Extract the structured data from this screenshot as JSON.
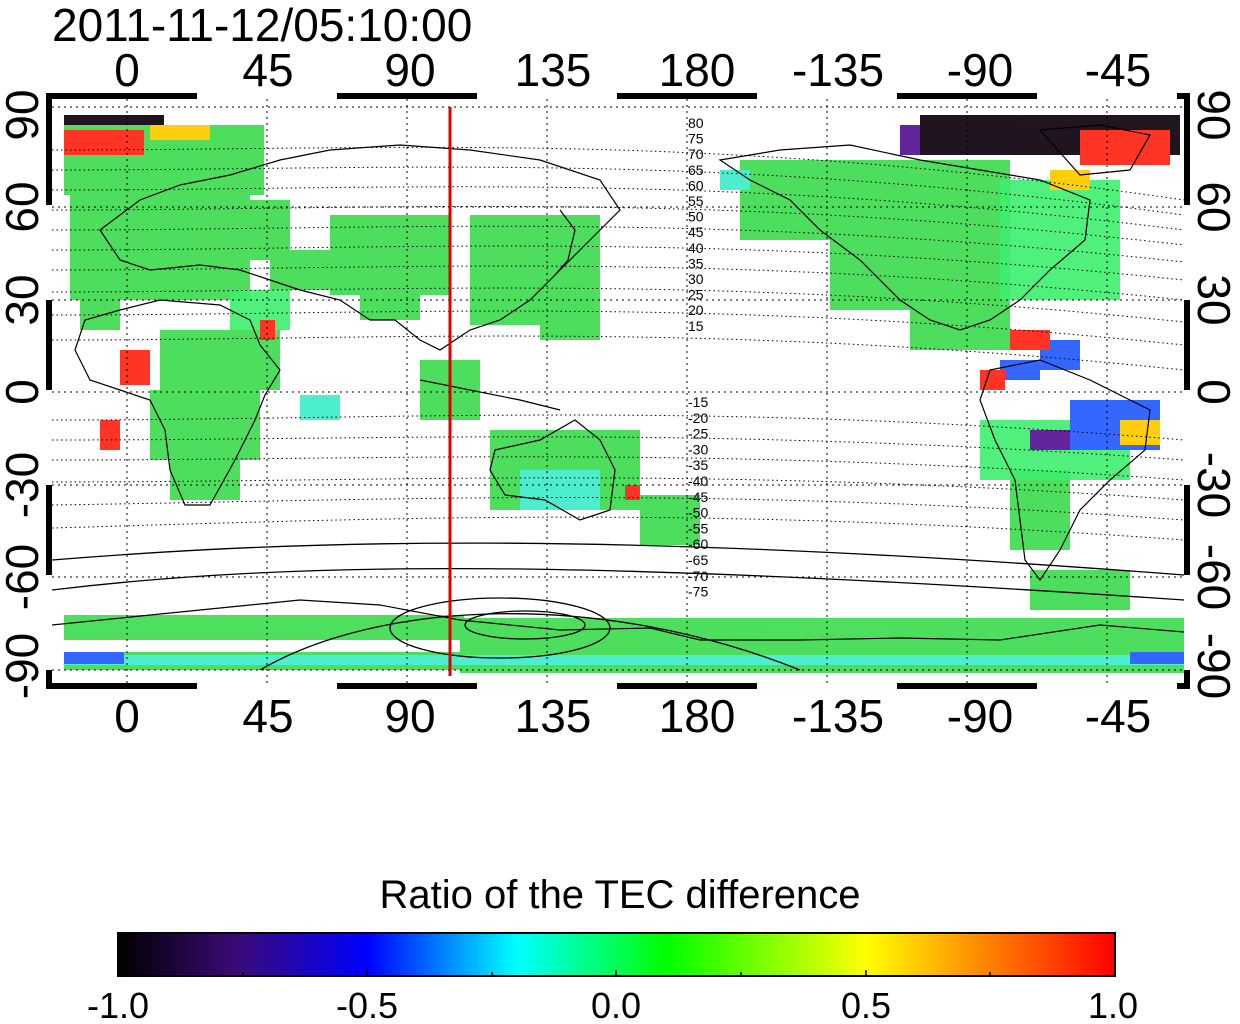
{
  "title": "2011-11-12/05:10:00",
  "map": {
    "lon_ticks": [
      "0",
      "45",
      "90",
      "135",
      "180",
      "-135",
      "-90",
      "-45"
    ],
    "lat_ticks": [
      "90",
      "60",
      "30",
      "0",
      "-30",
      "-60",
      "-90"
    ],
    "terminator_longitude": 103,
    "contour_labels_north": [
      "80",
      "75",
      "70",
      "65",
      "60",
      "55",
      "50",
      "45",
      "40",
      "35",
      "30",
      "25",
      "20",
      "15"
    ],
    "contour_labels_south": [
      "-15",
      "-20",
      "-25",
      "-30",
      "-35",
      "-40",
      "-45",
      "-50",
      "-55",
      "-60",
      "-65",
      "-70",
      "-75"
    ]
  },
  "colorbar": {
    "title": "Ratio of the TEC difference",
    "min": -1.0,
    "max": 1.0,
    "tick_labels": [
      "-1.0",
      "-0.5",
      "0.0",
      "0.5",
      "1.0"
    ],
    "stops": [
      "#000000",
      "#3b0a78",
      "#0000ff",
      "#00ffff",
      "#00ff00",
      "#ffff00",
      "#ff0000"
    ]
  },
  "colors": {
    "terminator": "#e00000",
    "coastline": "#000000",
    "grid": "#000000",
    "data_dominant": "#33dd44"
  }
}
